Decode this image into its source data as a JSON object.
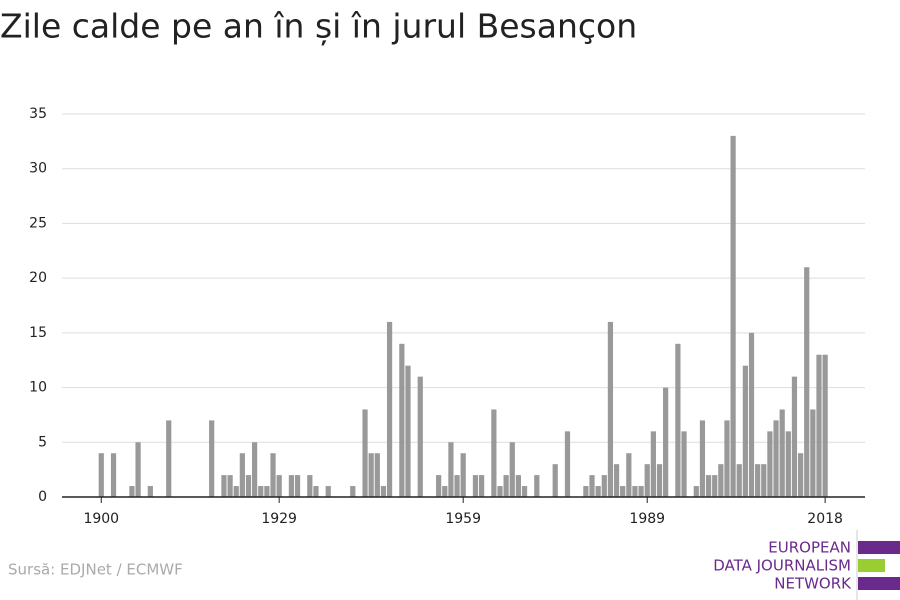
{
  "chart_data": {
    "type": "bar",
    "title": "Zile calde pe an în și în jurul Besançon",
    "source": "Sursă: EDJNet / ECMWF",
    "logo": [
      "EUROPEAN",
      "DATA JOURNALISM",
      "NETWORK"
    ],
    "color": "#999999",
    "x": [
      1900,
      1902,
      1905,
      1906,
      1908,
      1911,
      1918,
      1920,
      1921,
      1922,
      1923,
      1924,
      1925,
      1926,
      1927,
      1928,
      1929,
      1931,
      1932,
      1934,
      1935,
      1937,
      1941,
      1943,
      1944,
      1945,
      1946,
      1947,
      1949,
      1950,
      1952,
      1955,
      1956,
      1957,
      1958,
      1959,
      1961,
      1962,
      1964,
      1965,
      1966,
      1967,
      1968,
      1969,
      1971,
      1974,
      1976,
      1979,
      1980,
      1981,
      1982,
      1983,
      1984,
      1985,
      1986,
      1987,
      1988,
      1989,
      1990,
      1991,
      1992,
      1994,
      1995,
      1997,
      1998,
      1999,
      2000,
      2001,
      2002,
      2003,
      2004,
      2005,
      2006,
      2007,
      2008,
      2009,
      2010,
      2011,
      2012,
      2013,
      2014,
      2015,
      2016,
      2017,
      2018
    ],
    "values": [
      4,
      4,
      1,
      5,
      1,
      7,
      7,
      2,
      2,
      1,
      4,
      2,
      5,
      1,
      1,
      4,
      2,
      2,
      2,
      2,
      1,
      1,
      1,
      8,
      4,
      4,
      1,
      16,
      14,
      12,
      11,
      2,
      1,
      5,
      2,
      4,
      2,
      2,
      8,
      1,
      2,
      5,
      2,
      1,
      2,
      3,
      6,
      1,
      2,
      1,
      2,
      16,
      3,
      1,
      4,
      1,
      1,
      3,
      6,
      3,
      10,
      14,
      6,
      1,
      7,
      2,
      2,
      3,
      7,
      33,
      3,
      12,
      15,
      3,
      3,
      6,
      7,
      8,
      6,
      11,
      4,
      21,
      8,
      13,
      13
    ],
    "xlim": [
      1893.6,
      2024.5
    ],
    "xticks": [
      1900,
      1929,
      1959,
      1989,
      2018
    ],
    "ylim": [
      0,
      35
    ],
    "yticks": [
      0,
      5,
      10,
      15,
      20,
      25,
      30,
      35
    ],
    "grid": true
  }
}
